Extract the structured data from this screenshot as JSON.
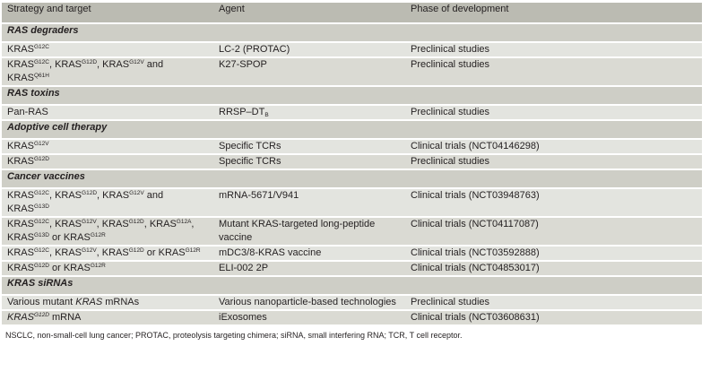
{
  "header": [
    "Strategy and target",
    "Agent",
    "Phase of development"
  ],
  "sections": [
    {
      "title": "RAS degraders",
      "rows": [
        {
          "target": [
            [
              "KRAS",
              "G12C"
            ]
          ],
          "agent": [
            [
              "LC-2 (PROTAC)",
              ""
            ]
          ],
          "phase": "Preclinical studies"
        },
        {
          "target": [
            [
              "KRAS",
              "G12C"
            ],
            [
              ", KRAS",
              "G12D"
            ],
            [
              ", KRAS",
              "G12V"
            ],
            [
              " and KRAS",
              "Q61H"
            ]
          ],
          "agent": [
            [
              "K27-SPOP",
              ""
            ]
          ],
          "phase": "Preclinical studies"
        }
      ]
    },
    {
      "title": "RAS toxins",
      "rows": [
        {
          "target": [
            [
              "Pan-RAS",
              ""
            ]
          ],
          "agent": [
            [
              "RRSP–DT",
              "",
              "B"
            ]
          ],
          "phase": "Preclinical studies"
        }
      ]
    },
    {
      "title": "Adoptive cell therapy",
      "rows": [
        {
          "target": [
            [
              "KRAS",
              "G12V"
            ]
          ],
          "agent": [
            [
              "Specific TCRs",
              ""
            ]
          ],
          "phase": "Clinical trials (NCT04146298)"
        },
        {
          "target": [
            [
              "KRAS",
              "G12D"
            ]
          ],
          "agent": [
            [
              "Specific TCRs",
              ""
            ]
          ],
          "phase": "Preclinical studies"
        }
      ]
    },
    {
      "title": "Cancer vaccines",
      "rows": [
        {
          "target": [
            [
              "KRAS",
              "G12C"
            ],
            [
              ", KRAS",
              "G12D"
            ],
            [
              ", KRAS",
              "G12V"
            ],
            [
              " and KRAS",
              "G13D"
            ]
          ],
          "agent": [
            [
              "mRNA-5671/V941",
              ""
            ]
          ],
          "phase": "Clinical trials (NCT03948763)"
        },
        {
          "tall": true,
          "target": [
            [
              "KRAS",
              "G12C"
            ],
            [
              ", KRAS",
              "G12V"
            ],
            [
              ", KRAS",
              "G12D"
            ],
            [
              ", KRAS",
              "G12A"
            ],
            [
              ", KRAS",
              "G13D"
            ],
            [
              " or KRAS",
              "G12R"
            ]
          ],
          "agent": [
            [
              "Mutant KRAS-targeted long-peptide vaccine",
              ""
            ]
          ],
          "phase": "Clinical trials (NCT04117087)"
        },
        {
          "target": [
            [
              "KRAS",
              "G12C"
            ],
            [
              ", KRAS",
              "G12V"
            ],
            [
              ", KRAS",
              "G12D"
            ],
            [
              " or KRAS",
              "G12R"
            ]
          ],
          "agent": [
            [
              "mDC3/8-KRAS vaccine",
              ""
            ]
          ],
          "phase": "Clinical trials (NCT03592888)"
        },
        {
          "target": [
            [
              "KRAS",
              "G12D"
            ],
            [
              " or KRAS",
              "G12R"
            ]
          ],
          "agent": [
            [
              "ELI-002 2P",
              ""
            ]
          ],
          "phase": "Clinical trials (NCT04853017)"
        }
      ]
    },
    {
      "title": "KRAS siRNAs",
      "rows": [
        {
          "tall": true,
          "target": [
            [
              "Various mutant ",
              ""
            ],
            [
              "KRAS",
              "",
              "",
              "it"
            ],
            [
              " mRNAs",
              ""
            ]
          ],
          "agent": [
            [
              "Various nanoparticle-based technologies",
              ""
            ]
          ],
          "phase": "Preclinical studies"
        },
        {
          "target": [
            [
              "KRAS",
              "G12D",
              "",
              "it"
            ],
            [
              " mRNA",
              ""
            ]
          ],
          "agent": [
            [
              "iExosomes",
              ""
            ]
          ],
          "phase": "Clinical trials (NCT03608631)"
        }
      ]
    }
  ],
  "footnote": "NSCLC, non-small-cell lung cancer; PROTAC, proteolysis targeting chimera; siRNA, small interfering RNA; TCR, T cell receptor."
}
